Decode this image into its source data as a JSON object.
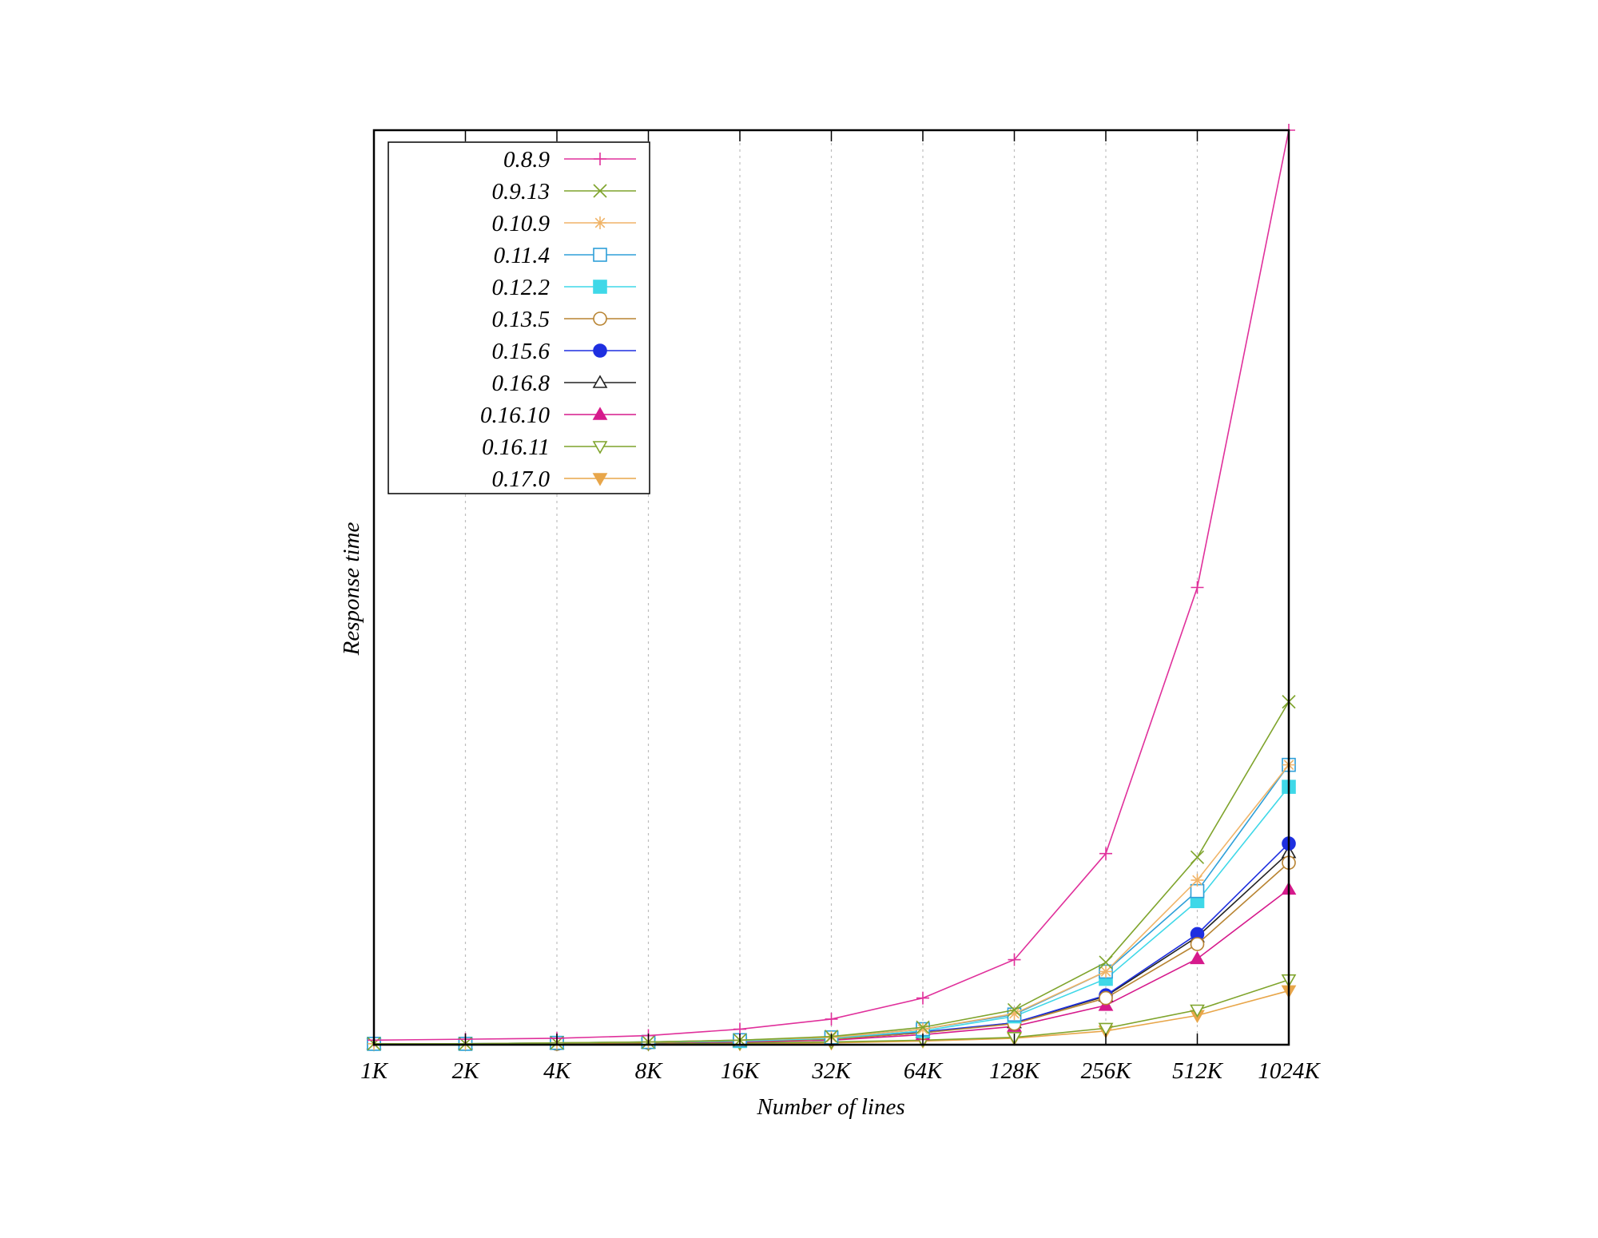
{
  "chart_data": {
    "type": "line",
    "xlabel": "Number of lines",
    "ylabel": "Response time",
    "categories": [
      "1K",
      "2K",
      "4K",
      "8K",
      "16K",
      "32K",
      "64K",
      "128K",
      "256K",
      "512K",
      "1024K"
    ],
    "ylim": [
      0,
      1
    ],
    "y_tick_labels": false,
    "grid": "vertical dotted",
    "legend_position": "top-left",
    "series": [
      {
        "name": "0.8.9",
        "color": "#e0309b",
        "marker": "plus",
        "values": [
          0.005,
          0.006,
          0.007,
          0.01,
          0.017,
          0.028,
          0.051,
          0.093,
          0.209,
          0.5,
          1.0
        ]
      },
      {
        "name": "0.9.13",
        "color": "#7fa42c",
        "marker": "cross",
        "values": [
          0.001,
          0.001,
          0.002,
          0.003,
          0.005,
          0.009,
          0.019,
          0.038,
          0.09,
          0.205,
          0.375
        ]
      },
      {
        "name": "0.10.9",
        "color": "#f0b468",
        "marker": "star",
        "values": [
          0.001,
          0.001,
          0.002,
          0.003,
          0.005,
          0.008,
          0.017,
          0.034,
          0.08,
          0.18,
          0.306
        ]
      },
      {
        "name": "0.11.4",
        "color": "#2e9fd8",
        "marker": "square-open",
        "values": [
          0.001,
          0.001,
          0.002,
          0.003,
          0.005,
          0.008,
          0.017,
          0.033,
          0.08,
          0.168,
          0.306
        ]
      },
      {
        "name": "0.12.2",
        "color": "#3fd8e8",
        "marker": "square-filled",
        "values": [
          0.001,
          0.001,
          0.002,
          0.003,
          0.004,
          0.007,
          0.015,
          0.031,
          0.072,
          0.157,
          0.282
        ]
      },
      {
        "name": "0.13.5",
        "color": "#b88432",
        "marker": "circle-open",
        "values": [
          0.001,
          0.001,
          0.001,
          0.002,
          0.004,
          0.006,
          0.013,
          0.023,
          0.051,
          0.11,
          0.199
        ]
      },
      {
        "name": "0.15.6",
        "color": "#1e2fe0",
        "marker": "circle-filled",
        "values": [
          0.001,
          0.001,
          0.001,
          0.002,
          0.004,
          0.006,
          0.014,
          0.024,
          0.054,
          0.121,
          0.22
        ]
      },
      {
        "name": "0.16.8",
        "color": "#222222",
        "marker": "triangle-open",
        "values": [
          0.001,
          0.001,
          0.001,
          0.002,
          0.004,
          0.006,
          0.013,
          0.024,
          0.053,
          0.118,
          0.21
        ]
      },
      {
        "name": "0.16.10",
        "color": "#d61a8c",
        "marker": "triangle-filled",
        "values": [
          0.001,
          0.001,
          0.001,
          0.002,
          0.003,
          0.005,
          0.011,
          0.02,
          0.043,
          0.094,
          0.17
        ]
      },
      {
        "name": "0.16.11",
        "color": "#7fa42c",
        "marker": "tri-down-open",
        "values": [
          0.001,
          0.001,
          0.001,
          0.001,
          0.002,
          0.003,
          0.005,
          0.008,
          0.018,
          0.038,
          0.071
        ]
      },
      {
        "name": "0.17.0",
        "color": "#e8a64a",
        "marker": "tri-down-filled",
        "values": [
          0.001,
          0.001,
          0.001,
          0.001,
          0.001,
          0.002,
          0.004,
          0.007,
          0.015,
          0.032,
          0.059
        ]
      }
    ]
  }
}
